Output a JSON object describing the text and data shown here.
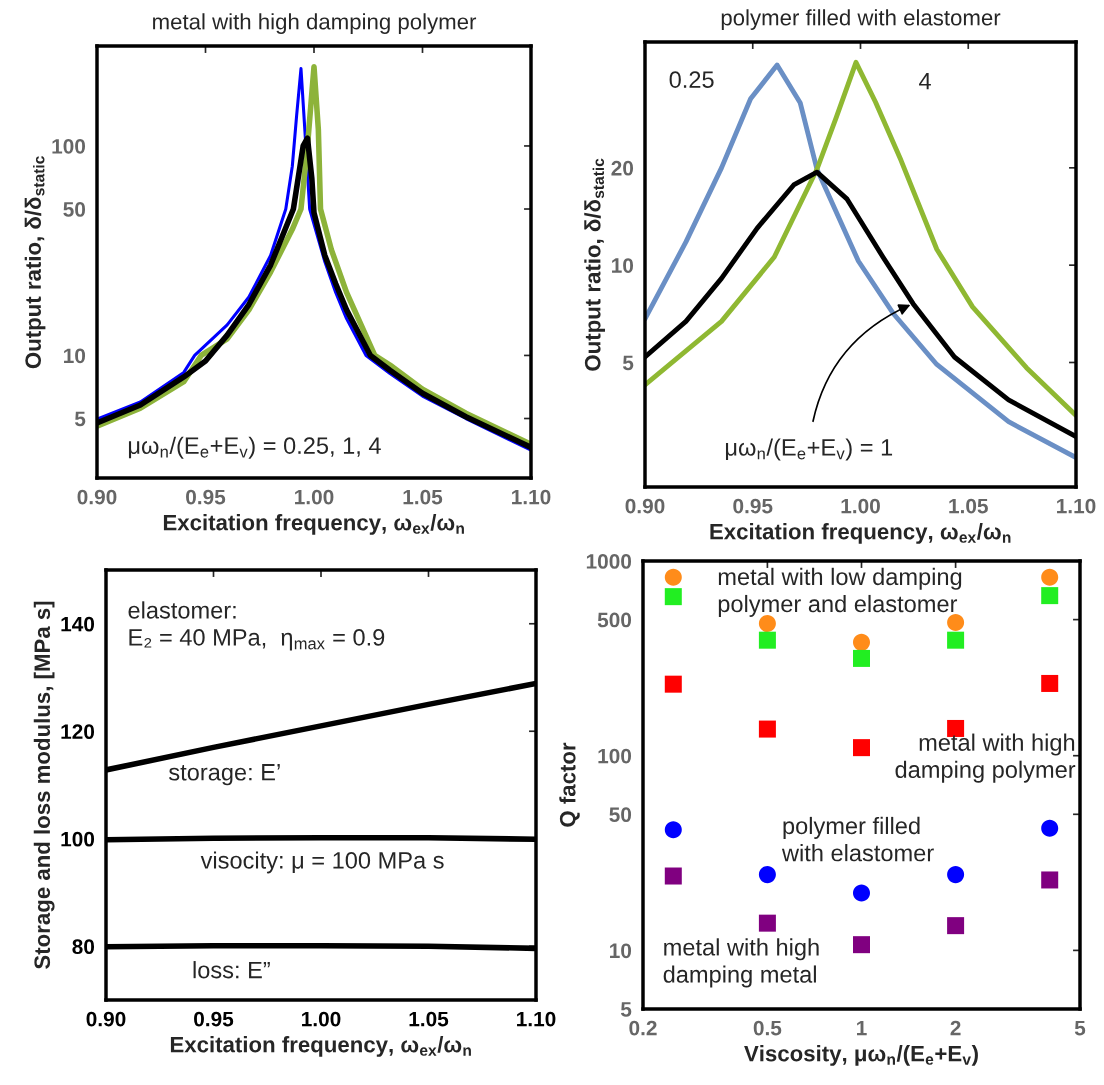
{
  "chart_data": [
    {
      "type": "line",
      "title": "metal with high damping polymer",
      "xlabel": "Excitation frequency, ω$_{ex}$/ω$_{n}$",
      "ylabel": "Output ratio, δ/δ$_{static}$",
      "log": "y",
      "grid": false,
      "legend": false,
      "xlim": [
        0.9,
        1.1
      ],
      "xticks": [
        {
          "value": 0.9,
          "label": "0.90"
        },
        0.95,
        {
          "value": 1.0,
          "label": "1.00"
        },
        1.05,
        {
          "value": 1.1,
          "label": "1.10"
        }
      ],
      "ylim": [
        2.6,
        300
      ],
      "yticks": [
        5,
        10,
        50,
        100
      ],
      "series": [
        {
          "color": "#0000ff",
          "x": [
            0.9,
            0.92,
            0.94,
            0.945,
            0.96,
            0.97,
            0.98,
            0.987,
            0.99,
            0.992,
            0.994,
            0.996,
            0.998,
            1.005,
            1.01,
            1.015,
            1.024,
            1.035,
            1.05,
            1.07,
            1.1
          ],
          "values": [
            4.97,
            6.0,
            8.3,
            10,
            14,
            19,
            30,
            50,
            80,
            140,
            234,
            110,
            50,
            28,
            20,
            15,
            10,
            8.2,
            6.4,
            5.0,
            3.53
          ]
        },
        {
          "color": "#8db33a",
          "x": [
            0.9,
            0.92,
            0.94,
            0.948,
            0.96,
            0.97,
            0.98,
            0.99,
            0.994,
            0.997,
            1.0,
            1.002,
            1.003,
            1.008,
            1.015,
            1.028,
            1.035,
            1.05,
            1.07,
            1.1
          ],
          "values": [
            4.6,
            5.6,
            7.5,
            10,
            12,
            16.5,
            25,
            40,
            50,
            100,
            239,
            120,
            50,
            32,
            20,
            10,
            9,
            6.9,
            5.3,
            3.76
          ]
        },
        {
          "color": "#000000",
          "x": [
            0.9,
            0.92,
            0.94,
            0.95,
            0.96,
            0.97,
            0.98,
            0.9905,
            0.995,
            0.997,
            0.999,
            1.0,
            1.005,
            1.01,
            1.015,
            1.026,
            1.035,
            1.05,
            1.07,
            1.1
          ],
          "values": [
            4.76,
            5.8,
            7.9,
            9.4,
            12.5,
            17.5,
            27,
            50,
            100,
            109,
            70,
            48,
            30,
            22,
            16.5,
            10,
            8.5,
            6.6,
            5.1,
            3.64
          ]
        }
      ],
      "annotations": [
        "μω$_{n}$/(E$_{e}$+E$_{v}$) = 0.25, 1, 4"
      ]
    },
    {
      "type": "line",
      "title": "polymer filled with elastomer",
      "xlabel": "Excitation frequency, ω$_{ex}$/ω$_{n}$",
      "ylabel": "Output ratio, δ/δ$_{static}$",
      "log": "y",
      "grid": false,
      "legend": false,
      "xlim": [
        0.9,
        1.1
      ],
      "xticks": [
        {
          "value": 0.9,
          "label": "0.90"
        },
        0.95,
        {
          "value": 1.0,
          "label": "1.00"
        },
        1.05,
        {
          "value": 1.1,
          "label": "1.10"
        }
      ],
      "ylim": [
        2.06,
        49
      ],
      "yticks": [
        5,
        10,
        20
      ],
      "series": [
        {
          "color": "#6a8fc5",
          "x": [
            0.9,
            0.919,
            0.9355,
            0.949,
            0.9613,
            0.972,
            0.9798,
            0.999,
            1.0154,
            1.0354,
            1.0687,
            1.1
          ],
          "values": [
            6.82,
            11.8,
            20,
            32.7,
            41.6,
            31.8,
            19.8,
            10.3,
            7.06,
            4.93,
            3.28,
            2.54
          ]
        },
        {
          "color": "#8fb832",
          "x": [
            0.9,
            0.9355,
            0.96,
            0.9798,
            0.9888,
            0.9979,
            1.007,
            1.0188,
            1.0354,
            1.052,
            1.077,
            1.1
          ],
          "values": [
            4.26,
            6.7,
            10.6,
            19.8,
            28.7,
            42.4,
            31.9,
            21.1,
            11.2,
            7.43,
            4.82,
            3.43
          ]
        },
        {
          "color": "#000000",
          "x": [
            0.9,
            0.919,
            0.9355,
            0.952,
            0.969,
            0.9798,
            0.9938,
            1.0104,
            1.0244,
            1.0436,
            1.0687,
            1.1
          ],
          "values": [
            5.2,
            6.7,
            9.1,
            13.0,
            17.7,
            19.4,
            16.0,
            10.6,
            7.6,
            5.2,
            3.83,
            2.95
          ]
        }
      ],
      "annotations": [
        {
          "text": "0.25",
          "x": 0.9613,
          "y": 41.6
        },
        {
          "text": "4",
          "x": 0.9979,
          "y": 42.4
        },
        {
          "text": "μω$_{n}$/(E$_{e}$+E$_{v}$) = 1",
          "x": 1.0244,
          "y": 7.6
        }
      ]
    },
    {
      "type": "line",
      "xlabel": "Excitation frequency, ω$_{ex}$/ω$_{n}$",
      "ylabel": "Storage and loss modulus, [MPa s]",
      "grid": false,
      "legend": false,
      "xlim": [
        0.9,
        1.1
      ],
      "xticks": [
        {
          "value": 0.9,
          "label": "0.90"
        },
        0.95,
        {
          "value": 1.0,
          "label": "1.00"
        },
        1.05,
        {
          "value": 1.1,
          "label": "1.10"
        }
      ],
      "ylim": [
        70,
        150
      ],
      "yticks": [
        80,
        100,
        120,
        140
      ],
      "series": [
        {
          "color": "#000000",
          "x": [
            0.9,
            0.95,
            1.0,
            1.05,
            1.1
          ],
          "values": [
            112.8,
            117.0,
            121.0,
            125.0,
            128.9
          ]
        },
        {
          "color": "#000000",
          "x": [
            0.9,
            0.95,
            1.0,
            1.05,
            1.1
          ],
          "values": [
            99.8,
            100.1,
            100.2,
            100.2,
            99.9
          ]
        },
        {
          "color": "#000000",
          "x": [
            0.9,
            0.95,
            1.0,
            1.05,
            1.1
          ],
          "values": [
            79.9,
            80.1,
            80.1,
            80.0,
            79.6
          ]
        }
      ],
      "annotations": [
        "elastomer:\nE₂ = 40 MPa,  η$_{max}$ = 0.9",
        "storage: E’",
        "visocity: μ = 100 MPa s",
        "loss: E”"
      ]
    },
    {
      "type": "scatter",
      "xlabel": "Viscosity, μω$_{n}$/(E$_{e}$+E$_{v}$)",
      "ylabel": "Q factor",
      "log": "xy",
      "grid": false,
      "legend": false,
      "xlim": [
        0.2,
        5
      ],
      "xticks": [
        0.2,
        0.5,
        1,
        2,
        5
      ],
      "ylim": [
        5,
        1000
      ],
      "yticks": [
        5,
        10,
        50,
        100,
        500,
        1000
      ],
      "series": [
        {
          "color": "#ff8c1a",
          "marker": "circle",
          "x": [
            0.25,
            0.5,
            1,
            2,
            4
          ],
          "values": [
            826,
            477,
            382,
            483,
            826
          ]
        },
        {
          "color": "#22ee22",
          "marker": "square",
          "x": [
            0.25,
            0.5,
            1,
            2,
            4
          ],
          "values": [
            656,
            392,
            316,
            392,
            664
          ]
        },
        {
          "color": "#ff0000",
          "marker": "square",
          "x": [
            0.25,
            0.5,
            1,
            2,
            4
          ],
          "values": [
            233,
            137,
            110,
            138,
            235
          ]
        },
        {
          "color": "#0000ff",
          "marker": "circle",
          "x": [
            0.25,
            0.5,
            1,
            2,
            4
          ],
          "values": [
            41.7,
            24.5,
            19.7,
            24.5,
            42.4
          ]
        },
        {
          "color": "#800080",
          "marker": "square",
          "x": [
            0.25,
            0.5,
            1,
            2,
            4
          ],
          "values": [
            24.1,
            13.8,
            10.7,
            13.4,
            23.0
          ]
        }
      ],
      "annotations": [
        "metal with low damping\npolymer and elastomer",
        "metal with high\ndamping polymer",
        "polymer filled\nwith elastomer",
        "metal with high\ndamping metal"
      ]
    }
  ]
}
